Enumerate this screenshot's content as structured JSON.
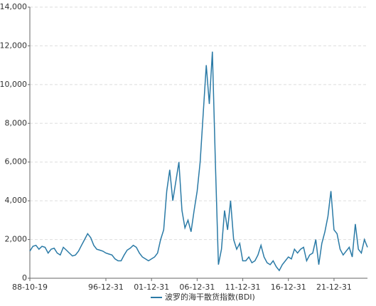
{
  "chart_data": {
    "type": "line",
    "categories": [
      "88-10-19",
      null,
      null,
      null,
      null,
      null,
      null,
      null,
      null,
      null,
      null,
      null,
      null,
      null,
      null,
      null,
      null,
      null,
      null,
      null,
      null,
      null,
      null,
      null,
      null,
      "96-12-31",
      null,
      null,
      null,
      null,
      null,
      null,
      null,
      null,
      null,
      null,
      null,
      null,
      null,
      null,
      "01-12-31",
      null,
      null,
      null,
      null,
      null,
      null,
      null,
      null,
      null,
      null,
      null,
      null,
      null,
      null,
      "06-12-31",
      null,
      null,
      null,
      null,
      null,
      null,
      null,
      null,
      null,
      null,
      null,
      null,
      null,
      null,
      "11-12-31",
      null,
      null,
      null,
      null,
      null,
      null,
      null,
      null,
      null,
      null,
      null,
      null,
      null,
      null,
      "16-12-31",
      null,
      null,
      null,
      null,
      null,
      null,
      null,
      null,
      null,
      null,
      null,
      null,
      null,
      null,
      "21-12-31",
      null,
      null,
      null,
      null,
      null,
      null,
      null,
      null,
      null,
      null,
      null
    ],
    "series": [
      {
        "name": "波罗的海干散货指数(BDI)",
        "color": "#2a7aa6",
        "values": [
          1400,
          1650,
          1700,
          1500,
          1650,
          1600,
          1300,
          1500,
          1550,
          1300,
          1200,
          1600,
          1450,
          1300,
          1150,
          1200,
          1400,
          1700,
          2000,
          2300,
          2100,
          1700,
          1500,
          1450,
          1400,
          1300,
          1250,
          1200,
          1000,
          900,
          900,
          1200,
          1450,
          1550,
          1700,
          1600,
          1300,
          1100,
          1000,
          900,
          1000,
          1100,
          1300,
          2000,
          2500,
          4500,
          5600,
          4000,
          5000,
          6000,
          3500,
          2600,
          3000,
          2400,
          3500,
          4500,
          6000,
          8500,
          11000,
          9000,
          11700,
          6000,
          700,
          1500,
          3500,
          2500,
          4000,
          2000,
          1500,
          1800,
          900,
          900,
          1100,
          800,
          900,
          1200,
          1700,
          1100,
          800,
          700,
          900,
          600,
          400,
          700,
          900,
          1100,
          1000,
          1500,
          1300,
          1500,
          1600,
          900,
          1200,
          1300,
          2000,
          700,
          1800,
          2400,
          3200,
          4500,
          2500,
          2300,
          1500,
          1200,
          1400,
          1600,
          1100,
          2800,
          1500,
          1300,
          2000,
          1600
        ]
      }
    ],
    "ylim": [
      0,
      14000
    ],
    "yticks": [
      0,
      {
        "value": 2000,
        "label": "2,000"
      },
      {
        "value": 4000,
        "label": "4,000"
      },
      {
        "value": 6000,
        "label": "6,000"
      },
      {
        "value": 8000,
        "label": "8,000"
      },
      {
        "value": 10000,
        "label": "10,000"
      },
      {
        "value": 12000,
        "label": "12,000"
      },
      {
        "value": 14000,
        "label": "14,000"
      }
    ],
    "grid": true,
    "legend": "bottom"
  }
}
